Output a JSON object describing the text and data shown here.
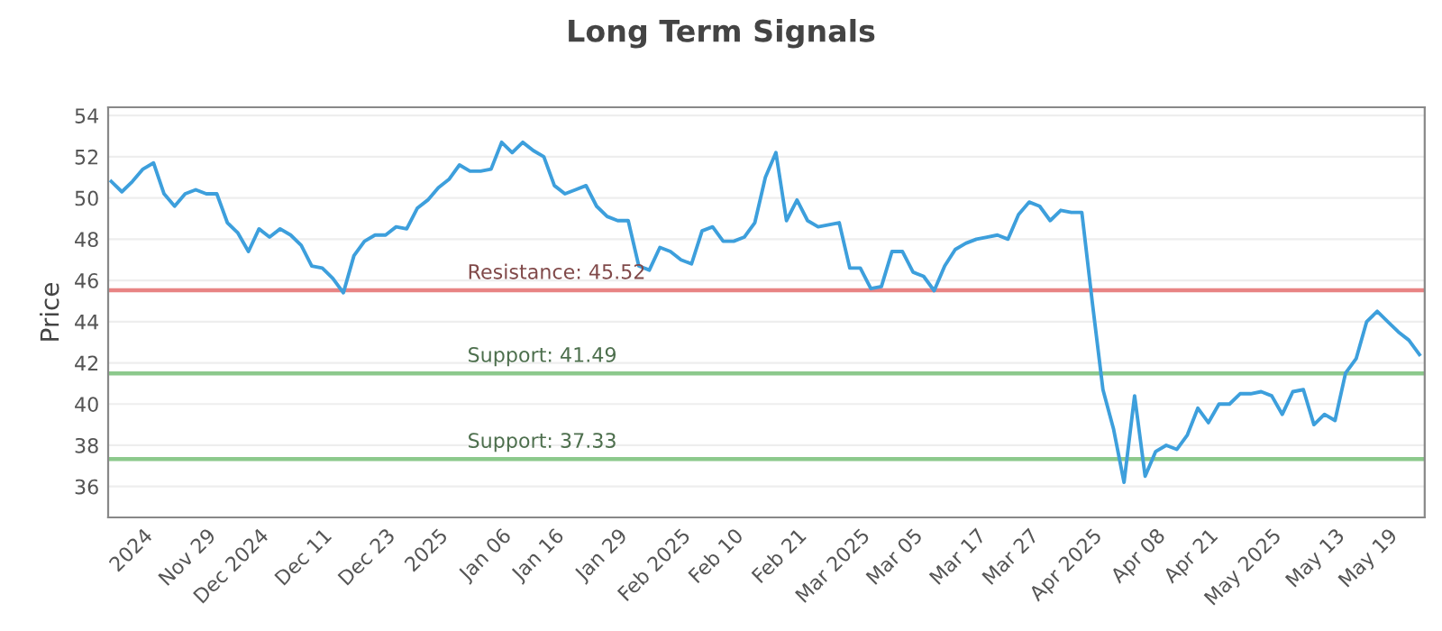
{
  "chart_data": {
    "type": "line",
    "title": "Long Term Signals",
    "ylabel": "Price",
    "categories": [
      null,
      null,
      null,
      "2024",
      null,
      null,
      null,
      null,
      null,
      "Nov 29",
      null,
      null,
      null,
      null,
      "Dec 2024",
      null,
      null,
      null,
      null,
      null,
      "Dec 11",
      null,
      null,
      null,
      null,
      null,
      "Dec 23",
      null,
      null,
      null,
      null,
      "2025",
      null,
      null,
      null,
      null,
      null,
      "Jan 06",
      null,
      null,
      null,
      null,
      "Jan 16",
      null,
      null,
      null,
      null,
      null,
      "Jan 29",
      null,
      null,
      null,
      null,
      null,
      "Feb 2025",
      null,
      null,
      null,
      null,
      "Feb 10",
      null,
      null,
      null,
      null,
      null,
      "Feb 21",
      null,
      null,
      null,
      null,
      null,
      "Mar 2025",
      null,
      null,
      null,
      null,
      "Mar 05",
      null,
      null,
      null,
      null,
      null,
      "Mar 17",
      null,
      null,
      null,
      null,
      "Mar 27",
      null,
      null,
      null,
      null,
      null,
      "Apr 2025",
      null,
      null,
      null,
      null,
      null,
      "Apr 08",
      null,
      null,
      null,
      null,
      "Apr 21",
      null,
      null,
      null,
      null,
      null,
      "May 2025",
      null,
      null,
      null,
      null,
      null,
      "May 13",
      null,
      null,
      null,
      null,
      "May 19",
      null,
      null,
      null
    ],
    "series": [
      {
        "color": "#3d9fdc",
        "values": [
          50.8,
          50.3,
          50.8,
          51.4,
          51.7,
          50.2,
          49.6,
          50.2,
          50.4,
          50.2,
          50.2,
          48.8,
          48.3,
          47.4,
          48.5,
          48.1,
          48.5,
          48.2,
          47.7,
          46.7,
          46.6,
          46.1,
          45.4,
          47.2,
          47.9,
          48.2,
          48.2,
          48.6,
          48.5,
          49.5,
          49.9,
          50.5,
          50.9,
          51.6,
          51.3,
          51.3,
          51.4,
          52.7,
          52.2,
          52.7,
          52.3,
          52.0,
          50.6,
          50.2,
          50.4,
          50.6,
          49.6,
          49.1,
          48.9,
          48.9,
          46.7,
          46.5,
          47.6,
          47.4,
          47.0,
          46.8,
          48.4,
          48.6,
          47.9,
          47.9,
          48.1,
          48.8,
          51.0,
          52.2,
          48.9,
          49.9,
          48.9,
          48.6,
          48.7,
          48.8,
          46.6,
          46.6,
          45.6,
          45.7,
          47.4,
          47.4,
          46.4,
          46.2,
          45.5,
          46.7,
          47.5,
          47.8,
          48.0,
          48.1,
          48.2,
          48.0,
          49.2,
          49.8,
          49.6,
          48.9,
          49.4,
          49.3,
          49.3,
          44.9,
          40.7,
          38.8,
          36.2,
          40.4,
          36.5,
          37.7,
          38.0,
          37.8,
          38.5,
          39.8,
          39.1,
          40.0,
          40.0,
          40.5,
          40.5,
          40.6,
          40.4,
          39.5,
          40.6,
          40.7,
          39.0,
          39.5,
          39.2,
          41.5,
          42.2,
          44.0,
          44.5,
          44.0,
          43.5,
          43.1,
          42.4
        ]
      }
    ],
    "ylim": [
      34.5,
      54.4
    ],
    "yticks": [
      36,
      38,
      40,
      42,
      44,
      46,
      48,
      50,
      52,
      54
    ],
    "grid": "y",
    "marker": "none",
    "line_style": "solid",
    "ref_lines": [
      {
        "axis": "y",
        "value": 45.52,
        "label": "Resistance: 45.52",
        "color": "#e88484"
      },
      {
        "axis": "y",
        "value": 41.49,
        "label": "Support: 41.49",
        "color": "#8cc98c"
      },
      {
        "axis": "y",
        "value": 37.33,
        "label": "Support: 37.33",
        "color": "#8cc98c"
      }
    ]
  }
}
